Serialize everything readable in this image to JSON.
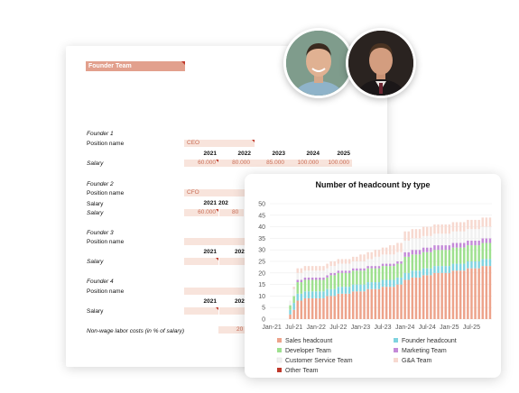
{
  "sheet": {
    "title": "Founder Team",
    "founders": [
      {
        "header": "Founder 1",
        "position_label": "Position name",
        "position_value": "CEO",
        "salary_label": "Salary",
        "years": [
          "2021",
          "2022",
          "2023",
          "2024",
          "2025"
        ],
        "salaries": [
          "60.000",
          "80.000",
          "85.000",
          "100.000",
          "100.000"
        ]
      },
      {
        "header": "Founder 2",
        "position_label": "Position name",
        "position_value": "CFO",
        "salary_label": "Salary",
        "years": [
          "2021",
          "202"
        ],
        "salaries": [
          "60.000",
          "80"
        ]
      },
      {
        "header": "Founder 3",
        "position_label": "Position name",
        "position_value": "",
        "salary_label": "Salary",
        "years": [
          "2021",
          "202"
        ],
        "salaries": [
          "",
          ""
        ]
      },
      {
        "header": "Founder 4",
        "position_label": "Position name",
        "position_value": "",
        "salary_label": "Salary",
        "years": [
          "2021",
          "202"
        ],
        "salaries": [
          "",
          ""
        ]
      }
    ],
    "nonwage_label": "Non-wage labor costs (in % of salary)",
    "nonwage_value": "20"
  },
  "chart_data": {
    "type": "bar",
    "title": "Number of headcount by type",
    "stacked": true,
    "yticks": [
      "0",
      "5",
      "10",
      "15",
      "20",
      "25",
      "30",
      "35",
      "40",
      "45",
      "50"
    ],
    "ylim": [
      0,
      50
    ],
    "xticks": [
      "Jan-21",
      "Jul-21",
      "Jan-22",
      "Jul-22",
      "Jan-23",
      "Jul-23",
      "Jan-24",
      "Jul-24",
      "Jan-25",
      "Jul-25"
    ],
    "legend": [
      {
        "name": "Sales headcount",
        "color": "#eda38b"
      },
      {
        "name": "Founder headcount",
        "color": "#7fd3df"
      },
      {
        "name": "Developer Team",
        "color": "#9ee08f"
      },
      {
        "name": "Marketing Team",
        "color": "#c48ad8"
      },
      {
        "name": "Customer Service Team",
        "color": "#f1f1f1"
      },
      {
        "name": "G&A Team",
        "color": "#f7d9d0"
      },
      {
        "name": "Other Team",
        "color": "#c0392b"
      }
    ],
    "months": [
      "Jan-21",
      "Feb-21",
      "Mar-21",
      "Apr-21",
      "May-21",
      "Jun-21",
      "Jul-21",
      "Aug-21",
      "Sep-21",
      "Oct-21",
      "Nov-21",
      "Dec-21",
      "Jan-22",
      "Feb-22",
      "Mar-22",
      "Apr-22",
      "May-22",
      "Jun-22",
      "Jul-22",
      "Aug-22",
      "Sep-22",
      "Oct-22",
      "Nov-22",
      "Dec-22",
      "Jan-23",
      "Feb-23",
      "Mar-23",
      "Apr-23",
      "May-23",
      "Jun-23",
      "Jul-23",
      "Aug-23",
      "Sep-23",
      "Oct-23",
      "Nov-23",
      "Dec-23",
      "Jan-24",
      "Feb-24",
      "Mar-24",
      "Apr-24",
      "May-24",
      "Jun-24",
      "Jul-24",
      "Aug-24",
      "Sep-24",
      "Oct-24",
      "Nov-24",
      "Dec-24",
      "Jan-25",
      "Feb-25",
      "Mar-25",
      "Apr-25",
      "May-25",
      "Jun-25",
      "Jul-25",
      "Aug-25",
      "Sep-25",
      "Oct-25",
      "Nov-25",
      "Dec-25"
    ],
    "series": [
      {
        "name": "Sales headcount",
        "values": [
          0,
          0,
          0,
          0,
          0,
          2,
          4,
          8,
          8,
          9,
          9,
          9,
          9,
          9,
          9,
          10,
          10,
          10,
          11,
          11,
          11,
          11,
          12,
          12,
          12,
          12,
          13,
          13,
          13,
          13,
          14,
          14,
          14,
          14,
          15,
          15,
          17,
          17,
          18,
          18,
          18,
          19,
          19,
          19,
          20,
          20,
          20,
          20,
          20,
          21,
          21,
          21,
          21,
          22,
          22,
          22,
          22,
          23,
          23,
          23
        ]
      },
      {
        "name": "Founder headcount",
        "values": [
          0,
          0,
          0,
          0,
          0,
          2,
          3,
          3,
          3,
          3,
          3,
          3,
          3,
          3,
          3,
          3,
          3,
          3,
          3,
          3,
          3,
          3,
          3,
          3,
          3,
          3,
          3,
          3,
          3,
          3,
          3,
          3,
          3,
          3,
          3,
          3,
          3,
          3,
          3,
          3,
          3,
          3,
          3,
          3,
          3,
          3,
          3,
          3,
          3,
          3,
          3,
          3,
          3,
          3,
          3,
          3,
          3,
          3,
          3,
          3
        ]
      },
      {
        "name": "Developer Team",
        "values": [
          0,
          0,
          0,
          0,
          0,
          2,
          3,
          5,
          5,
          5,
          5,
          5,
          5,
          5,
          5,
          5,
          6,
          6,
          6,
          6,
          6,
          6,
          6,
          6,
          6,
          6,
          6,
          6,
          6,
          6,
          6,
          6,
          6,
          6,
          6,
          6,
          7,
          7,
          7,
          7,
          7,
          7,
          7,
          7,
          7,
          7,
          7,
          7,
          7,
          7,
          7,
          7,
          7,
          7,
          7,
          7,
          7,
          7,
          7,
          7
        ]
      },
      {
        "name": "Marketing Team",
        "values": [
          0,
          0,
          0,
          0,
          0,
          0,
          0,
          1,
          1,
          1,
          1,
          1,
          1,
          1,
          1,
          1,
          1,
          1,
          1,
          1,
          1,
          1,
          1,
          1,
          1,
          1,
          1,
          1,
          1,
          1,
          1,
          1,
          1,
          1,
          1,
          1,
          2,
          2,
          2,
          2,
          2,
          2,
          2,
          2,
          2,
          2,
          2,
          2,
          2,
          2,
          2,
          2,
          2,
          2,
          2,
          2,
          2,
          2,
          2,
          2
        ]
      },
      {
        "name": "Customer Service Team",
        "values": [
          0,
          0,
          0,
          0,
          0,
          2,
          3,
          3,
          3,
          3,
          3,
          3,
          3,
          3,
          3,
          3,
          3,
          3,
          3,
          3,
          3,
          3,
          3,
          3,
          3,
          3,
          3,
          3,
          4,
          4,
          4,
          4,
          4,
          4,
          4,
          4,
          5,
          5,
          5,
          5,
          5,
          5,
          5,
          5,
          5,
          5,
          5,
          5,
          5,
          5,
          5,
          5,
          5,
          5,
          5,
          5,
          5,
          5,
          5,
          5
        ]
      },
      {
        "name": "G&A Team",
        "values": [
          0,
          0,
          0,
          0,
          0,
          0,
          1,
          2,
          2,
          2,
          2,
          2,
          2,
          2,
          2,
          2,
          2,
          2,
          2,
          2,
          2,
          2,
          2,
          2,
          3,
          3,
          3,
          3,
          3,
          3,
          3,
          3,
          4,
          4,
          4,
          4,
          4,
          4,
          4,
          4,
          4,
          4,
          4,
          4,
          4,
          4,
          4,
          4,
          4,
          4,
          4,
          4,
          4,
          4,
          4,
          4,
          4,
          4,
          4,
          4
        ]
      },
      {
        "name": "Other Team",
        "values": [
          0,
          0,
          0,
          0,
          0,
          0,
          0,
          0,
          0,
          0,
          0,
          0,
          0,
          0,
          0,
          0,
          0,
          0,
          0,
          0,
          0,
          0,
          0,
          0,
          0,
          0,
          0,
          0,
          0,
          0,
          0,
          0,
          0,
          0,
          0,
          0,
          0,
          0,
          0,
          0,
          0,
          0,
          0,
          0,
          0,
          0,
          0,
          0,
          0,
          0,
          0,
          0,
          0,
          0,
          0,
          0,
          0,
          0,
          0,
          0
        ]
      }
    ]
  }
}
